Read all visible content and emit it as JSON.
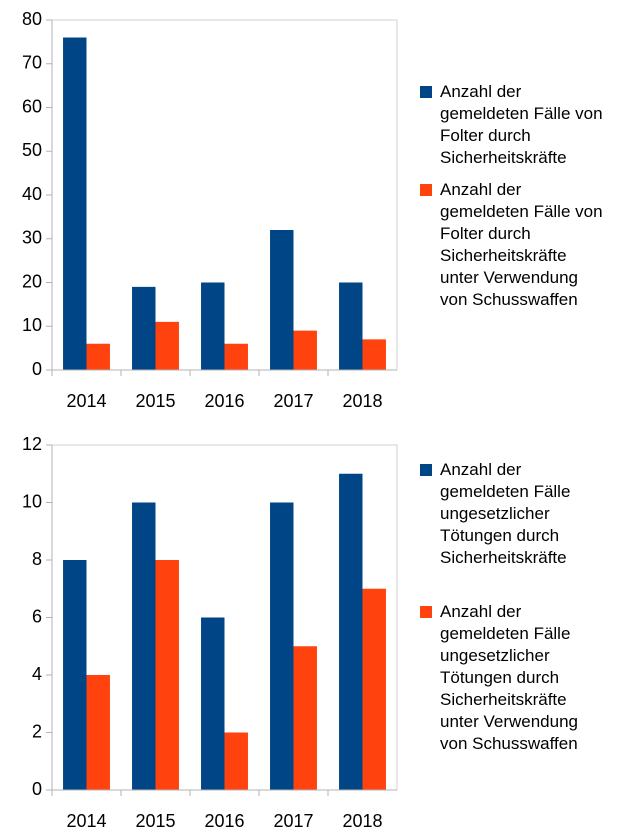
{
  "chart_data": [
    {
      "type": "bar",
      "categories": [
        "2014",
        "2015",
        "2016",
        "2017",
        "2018"
      ],
      "series": [
        {
          "name": "Anzahl der gemeldeten Fälle von Folter durch Sicherheitskräfte",
          "color": "#004586",
          "values": [
            76,
            19,
            20,
            32,
            20
          ]
        },
        {
          "name": "Anzahl der gemeldeten Fälle von Folter durch Sicherheitskräfte unter Verwendung von Schusswaffen",
          "color": "#ff420e",
          "values": [
            6,
            11,
            6,
            9,
            7
          ]
        }
      ],
      "ylim": [
        0,
        80
      ],
      "yticks": [
        0,
        10,
        20,
        30,
        40,
        50,
        60,
        70,
        80
      ],
      "grid": false,
      "legend": "right"
    },
    {
      "type": "bar",
      "categories": [
        "2014",
        "2015",
        "2016",
        "2017",
        "2018"
      ],
      "series": [
        {
          "name": "Anzahl der gemeldeten Fälle ungesetzlicher Tötungen durch Sicherheitskräfte",
          "color": "#004586",
          "values": [
            8,
            10,
            6,
            10,
            11
          ]
        },
        {
          "name": "Anzahl der gemeldeten Fälle ungesetzlicher Tötungen durch Sicherheitskräfte unter Verwendung von Schusswaffen",
          "color": "#ff420e",
          "values": [
            4,
            8,
            2,
            5,
            7
          ]
        }
      ],
      "ylim": [
        0,
        12
      ],
      "yticks": [
        0,
        2,
        4,
        6,
        8,
        10,
        12
      ],
      "grid": false,
      "legend": "right"
    }
  ]
}
